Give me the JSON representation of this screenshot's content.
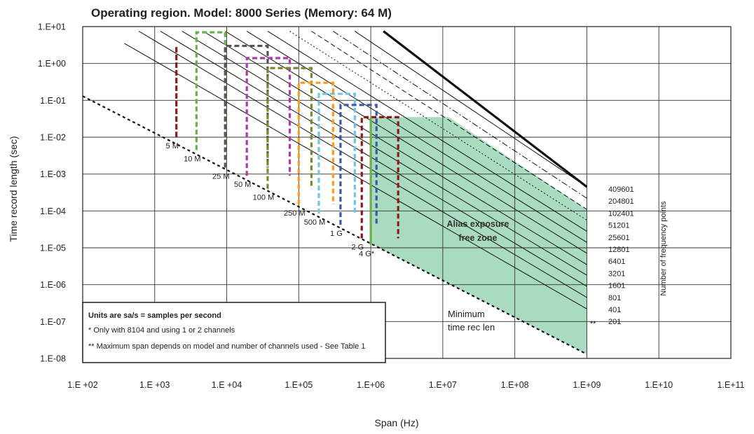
{
  "chart_data": {
    "type": "line",
    "title": "Operating region. Model: 8000 Series (Memory: 64 M)",
    "xlabel": "Span (Hz)",
    "ylabel": "Time record length (sec)",
    "xscale": "log",
    "yscale": "log",
    "xlim": [
      100,
      100000000000
    ],
    "ylim": [
      1e-08,
      10
    ],
    "grid": true,
    "x_tick_labels": [
      "1.E +02",
      "1.E +03",
      "1.E +04",
      "1.E+05",
      "1.E+06",
      "1.E+07",
      "1.E+08",
      "1.E+09",
      "1.E+10",
      "1.E+11"
    ],
    "y_tick_labels": [
      "1.E+01",
      "1.E+00",
      "1.E-01",
      "1.E-02",
      "1.E-03",
      "1.E-04",
      "1.E-05",
      "1.E-06",
      "1.E-07",
      "1.E-08"
    ],
    "max_time_line": {
      "x": [
        1500000,
        1000000000
      ],
      "y": [
        7.5,
        0.00045
      ]
    },
    "min_time_line": {
      "x": [
        100,
        1000000000
      ],
      "y": [
        0.13,
        1.3e-08
      ]
    },
    "frequency_point_lines": [
      {
        "points": "409601",
        "style": "solid",
        "x": [
          600000,
          1000000000
        ],
        "y": [
          7.5,
          0.00045
        ]
      },
      {
        "points": "204801",
        "style": "dashdot",
        "x": [
          300000,
          1000000000
        ],
        "y": [
          7.5,
          0.00022
        ]
      },
      {
        "points": "102401",
        "style": "dashed",
        "x": [
          150000,
          1000000000
        ],
        "y": [
          7.5,
          0.00011
        ]
      },
      {
        "points": "51201",
        "style": "dotted",
        "x": [
          75000,
          1000000000
        ],
        "y": [
          7.5,
          5.6e-05
        ]
      },
      {
        "points": "25601",
        "style": "solid",
        "x": [
          37000,
          1000000000
        ],
        "y": [
          7.5,
          2.8e-05
        ]
      },
      {
        "points": "12801",
        "style": "solid",
        "x": [
          19000,
          1000000000
        ],
        "y": [
          7.5,
          1.4e-05
        ]
      },
      {
        "points": "6401",
        "style": "solid",
        "x": [
          9500,
          1000000000
        ],
        "y": [
          7.5,
          7.1e-06
        ]
      },
      {
        "points": "3201",
        "style": "solid",
        "x": [
          4700,
          1000000000
        ],
        "y": [
          7.5,
          3.5e-06
        ]
      },
      {
        "points": "1601",
        "style": "solid",
        "x": [
          2400,
          1000000000
        ],
        "y": [
          7.5,
          1.8e-06
        ]
      },
      {
        "points": "801",
        "style": "solid",
        "x": [
          1200,
          1000000000
        ],
        "y": [
          7.5,
          9e-07
        ]
      },
      {
        "points": "401",
        "style": "solid",
        "x": [
          600,
          1000000000
        ],
        "y": [
          7.5,
          4.5e-07
        ]
      },
      {
        "points": "201",
        "style": "solid",
        "x": [
          380,
          1000000000
        ],
        "y": [
          3.5,
          2.2e-07
        ]
      }
    ],
    "frequency_point_labels": [
      "409601",
      "204801",
      "102401",
      "51201",
      "25601",
      "12801",
      "6401",
      "3201",
      "1601",
      "801",
      "401",
      "201"
    ],
    "frequency_points_axis_label": "Number of frequency points",
    "double_star": "**",
    "sample_rate_boxes": [
      {
        "label": "5 M",
        "color": "#8b1a1a",
        "x_min": 2000,
        "x_max": 2000,
        "y_min": 0.01,
        "y_max": 3
      },
      {
        "label": "10 M",
        "color": "#6ab04c",
        "x_min": 3800,
        "x_max": 9500,
        "y_min": 0.0045,
        "y_max": 7
      },
      {
        "label": "25 M",
        "color": "#555555",
        "x_min": 9500,
        "x_max": 37000,
        "y_min": 0.0015,
        "y_max": 3
      },
      {
        "label": "50 M",
        "color": "#b03aa8",
        "x_min": 19000,
        "x_max": 75000,
        "y_min": 0.0009,
        "y_max": 1.4
      },
      {
        "label": "100 M",
        "color": "#7a8a2a",
        "x_min": 37000,
        "x_max": 150000,
        "y_min": 0.0004,
        "y_max": 0.75
      },
      {
        "label": "250 M",
        "color": "#ff9a1a",
        "x_min": 100000,
        "x_max": 300000,
        "y_min": 0.00015,
        "y_max": 0.3
      },
      {
        "label": "500 M",
        "color": "#6ec6e6",
        "x_min": 190000,
        "x_max": 600000,
        "y_min": 8.5e-05,
        "y_max": 0.15
      },
      {
        "label": "1 G",
        "color": "#3a5aa8",
        "x_min": 380000,
        "x_max": 1200000,
        "y_min": 4.2e-05,
        "y_max": 0.075
      },
      {
        "label": "2 G",
        "color": "#8b1a1a",
        "x_min": 750000,
        "x_max": 2400000,
        "y_min": 1.8e-05,
        "y_max": 0.035
      },
      {
        "label": "4 G*",
        "color": "#6ab04c",
        "x_min": 1000000,
        "x_max": 1000000,
        "y_min": 1.2e-05,
        "y_max": 0.035
      }
    ],
    "alias_zone": {
      "label_line1": "Alias exposure",
      "label_line2": "free zone",
      "color": "#a8dbbf",
      "x": [
        1000000,
        12000000,
        1000000000,
        1000000000,
        1000000
      ],
      "y": [
        0.035,
        0.035,
        0.00011,
        1.3e-08,
        1.3e-05
      ]
    },
    "annotations": {
      "min_time_line1": "Minimum",
      "min_time_line2": "time rec len"
    }
  },
  "legend_box": {
    "title": "Units are sa/s = samples per second",
    "note1": "* Only with 8104 and using 1 or 2 channels",
    "note2": "** Maximum span depends on model and number of channels used - See Table 1"
  }
}
